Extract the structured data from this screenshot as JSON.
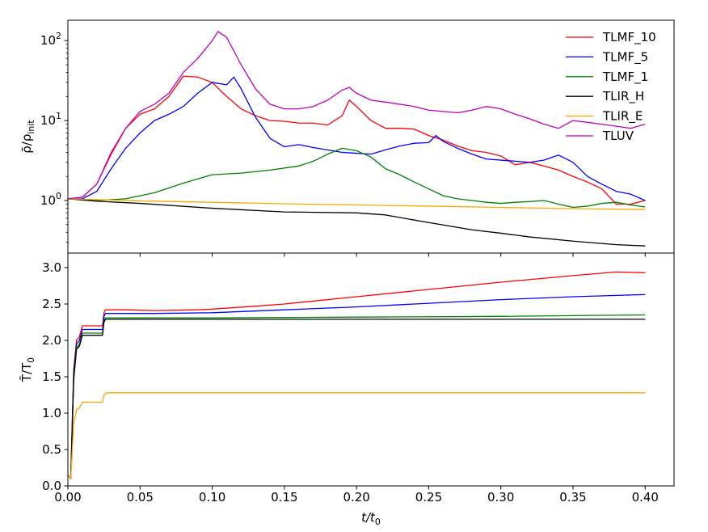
{
  "chart_data": {
    "type": "line",
    "shared_x_axis": {
      "xlim": [
        0.0,
        0.42
      ],
      "ticks": [
        0.0,
        0.05,
        0.1,
        0.15,
        0.2,
        0.25,
        0.3,
        0.35,
        0.4
      ],
      "tick_labels": [
        "0.00",
        "0.05",
        "0.10",
        "0.15",
        "0.20",
        "0.25",
        "0.30",
        "0.35",
        "0.40"
      ],
      "xlabel_main": "t/t",
      "xlabel_sub": "0"
    },
    "legend": {
      "placement": "top-right"
    },
    "series_styles": [
      {
        "name": "TLMF_10",
        "color": "#ff0000"
      },
      {
        "name": "TLMF_5",
        "color": "#0000ff"
      },
      {
        "name": "TLMF_1",
        "color": "#008000"
      },
      {
        "name": "TLIR_H",
        "color": "#000000"
      },
      {
        "name": "TLIR_E",
        "color": "#ffa500"
      },
      {
        "name": "TLUV",
        "color": "#bf00bf"
      }
    ],
    "panels": [
      {
        "scale": "log",
        "ylim": [
          0.22,
          180
        ],
        "yticks": [
          1,
          10,
          100
        ],
        "ytick_base": "10",
        "ytick_exponents": [
          "0",
          "1",
          "2"
        ],
        "ylabel_main": "ρ̄/ρ",
        "ylabel_sub": "init",
        "series": [
          {
            "name": "TLMF_10",
            "x": [
              0,
              0.01,
              0.02,
              0.03,
              0.04,
              0.05,
              0.06,
              0.07,
              0.08,
              0.09,
              0.1,
              0.11,
              0.12,
              0.13,
              0.14,
              0.15,
              0.16,
              0.17,
              0.18,
              0.19,
              0.195,
              0.2,
              0.21,
              0.22,
              0.23,
              0.24,
              0.25,
              0.26,
              0.27,
              0.28,
              0.29,
              0.3,
              0.31,
              0.32,
              0.33,
              0.34,
              0.35,
              0.36,
              0.37,
              0.38,
              0.39,
              0.4
            ],
            "y": [
              1.05,
              1.1,
              1.6,
              3.8,
              8.0,
              12.0,
              14.0,
              20.0,
              36.0,
              35.0,
              30.0,
              20.0,
              14.0,
              11.5,
              10.0,
              9.8,
              9.3,
              9.3,
              8.8,
              11.5,
              18.0,
              15.0,
              10.0,
              8.0,
              8.0,
              7.8,
              6.5,
              5.7,
              4.8,
              4.2,
              4.0,
              3.6,
              2.8,
              3.0,
              2.7,
              2.4,
              2.0,
              1.7,
              1.4,
              0.9,
              0.9,
              1.0
            ]
          },
          {
            "name": "TLMF_5",
            "x": [
              0,
              0.01,
              0.02,
              0.03,
              0.04,
              0.05,
              0.06,
              0.07,
              0.08,
              0.09,
              0.1,
              0.11,
              0.115,
              0.12,
              0.13,
              0.14,
              0.15,
              0.16,
              0.17,
              0.18,
              0.19,
              0.2,
              0.21,
              0.22,
              0.23,
              0.24,
              0.25,
              0.255,
              0.26,
              0.27,
              0.28,
              0.29,
              0.3,
              0.31,
              0.32,
              0.33,
              0.34,
              0.35,
              0.36,
              0.37,
              0.38,
              0.39,
              0.4
            ],
            "y": [
              1.05,
              1.05,
              1.3,
              2.5,
              4.5,
              7.0,
              10.0,
              12.0,
              15.0,
              22.0,
              30.0,
              28.0,
              35.0,
              25.0,
              11.0,
              6.0,
              4.7,
              5.0,
              4.6,
              4.3,
              4.0,
              3.9,
              3.8,
              4.3,
              4.8,
              5.2,
              5.3,
              6.5,
              5.5,
              4.5,
              3.8,
              3.3,
              3.2,
              3.1,
              3.0,
              3.2,
              3.7,
              3.0,
              2.0,
              1.6,
              1.3,
              1.2,
              1.0
            ]
          },
          {
            "name": "TLMF_1",
            "x": [
              0,
              0.02,
              0.04,
              0.06,
              0.08,
              0.1,
              0.12,
              0.14,
              0.16,
              0.17,
              0.18,
              0.19,
              0.2,
              0.21,
              0.22,
              0.23,
              0.24,
              0.25,
              0.26,
              0.27,
              0.28,
              0.29,
              0.3,
              0.31,
              0.32,
              0.33,
              0.34,
              0.35,
              0.36,
              0.37,
              0.38,
              0.39,
              0.4
            ],
            "y": [
              1.05,
              1.0,
              1.05,
              1.25,
              1.65,
              2.1,
              2.2,
              2.4,
              2.7,
              3.1,
              3.8,
              4.5,
              4.2,
              3.5,
              2.5,
              2.1,
              1.7,
              1.4,
              1.15,
              1.05,
              1.0,
              0.95,
              0.92,
              0.95,
              0.97,
              1.0,
              0.9,
              0.82,
              0.85,
              0.92,
              0.95,
              0.88,
              0.83
            ]
          },
          {
            "name": "TLIR_H",
            "x": [
              0,
              0.02,
              0.05,
              0.1,
              0.15,
              0.2,
              0.22,
              0.25,
              0.28,
              0.3,
              0.32,
              0.35,
              0.38,
              0.4
            ],
            "y": [
              1.05,
              0.98,
              0.92,
              0.8,
              0.72,
              0.7,
              0.66,
              0.53,
              0.43,
              0.39,
              0.35,
              0.31,
              0.28,
              0.27
            ]
          },
          {
            "name": "TLIR_E",
            "x": [
              0,
              0.05,
              0.1,
              0.15,
              0.2,
              0.25,
              0.3,
              0.35,
              0.4
            ],
            "y": [
              1.05,
              0.99,
              0.95,
              0.91,
              0.88,
              0.85,
              0.82,
              0.79,
              0.77
            ]
          },
          {
            "name": "TLUV",
            "x": [
              0,
              0.01,
              0.02,
              0.03,
              0.04,
              0.05,
              0.06,
              0.07,
              0.08,
              0.09,
              0.1,
              0.104,
              0.11,
              0.12,
              0.13,
              0.14,
              0.15,
              0.16,
              0.17,
              0.18,
              0.19,
              0.195,
              0.2,
              0.21,
              0.22,
              0.23,
              0.24,
              0.25,
              0.26,
              0.27,
              0.28,
              0.29,
              0.3,
              0.31,
              0.32,
              0.33,
              0.34,
              0.35,
              0.36,
              0.37,
              0.38,
              0.39,
              0.4
            ],
            "y": [
              1.05,
              1.1,
              1.6,
              4.0,
              8.0,
              13.0,
              16.0,
              22.0,
              40.0,
              60.0,
              100.0,
              130.0,
              110.0,
              50.0,
              25.0,
              16.0,
              14.0,
              14.0,
              15.0,
              18.0,
              24.0,
              26.0,
              22.0,
              18.0,
              17.0,
              16.0,
              15.0,
              13.5,
              13.0,
              12.5,
              13.5,
              15.0,
              14.0,
              12.0,
              10.5,
              9.0,
              8.0,
              10.0,
              9.5,
              9.0,
              8.5,
              8.0,
              9.0
            ]
          }
        ]
      },
      {
        "scale": "linear",
        "ylim": [
          0.0,
          3.2
        ],
        "yticks": [
          0.0,
          0.5,
          1.0,
          1.5,
          2.0,
          2.5,
          3.0
        ],
        "ytick_labels": [
          "0.0",
          "0.5",
          "1.0",
          "1.5",
          "2.0",
          "2.5",
          "3.0"
        ],
        "ylabel_main": "T̄/T",
        "ylabel_sub": "0",
        "series": [
          {
            "name": "TLMF_10",
            "x": [
              0,
              0.002,
              0.004,
              0.006,
              0.008,
              0.01,
              0.024,
              0.025,
              0.026,
              0.04,
              0.06,
              0.09,
              0.1,
              0.13,
              0.15,
              0.2,
              0.25,
              0.3,
              0.35,
              0.38,
              0.4
            ],
            "y": [
              0.15,
              0.1,
              1.6,
              2.0,
              2.05,
              2.2,
              2.2,
              2.38,
              2.42,
              2.42,
              2.41,
              2.42,
              2.43,
              2.47,
              2.5,
              2.6,
              2.7,
              2.8,
              2.89,
              2.94,
              2.93
            ]
          },
          {
            "name": "TLMF_5",
            "x": [
              0,
              0.002,
              0.004,
              0.006,
              0.008,
              0.01,
              0.024,
              0.025,
              0.026,
              0.06,
              0.1,
              0.15,
              0.2,
              0.25,
              0.3,
              0.35,
              0.4
            ],
            "y": [
              0.15,
              0.1,
              1.55,
              1.95,
              2.0,
              2.15,
              2.15,
              2.33,
              2.37,
              2.37,
              2.38,
              2.42,
              2.46,
              2.51,
              2.56,
              2.6,
              2.63
            ]
          },
          {
            "name": "TLMF_1",
            "x": [
              0,
              0.002,
              0.004,
              0.006,
              0.008,
              0.01,
              0.024,
              0.025,
              0.026,
              0.1,
              0.2,
              0.3,
              0.4
            ],
            "y": [
              0.15,
              0.1,
              1.5,
              1.9,
              1.95,
              2.1,
              2.1,
              2.27,
              2.31,
              2.31,
              2.32,
              2.33,
              2.35
            ]
          },
          {
            "name": "TLIR_H",
            "x": [
              0,
              0.002,
              0.004,
              0.006,
              0.008,
              0.01,
              0.024,
              0.025,
              0.026,
              0.1,
              0.2,
              0.3,
              0.4
            ],
            "y": [
              0.15,
              0.1,
              1.45,
              1.88,
              1.92,
              2.07,
              2.07,
              2.25,
              2.29,
              2.29,
              2.29,
              2.29,
              2.29
            ]
          },
          {
            "name": "TLIR_E",
            "x": [
              0,
              0.002,
              0.004,
              0.006,
              0.008,
              0.01,
              0.024,
              0.025,
              0.027,
              0.05,
              0.1,
              0.2,
              0.3,
              0.4
            ],
            "y": [
              0.15,
              0.1,
              0.85,
              1.05,
              1.07,
              1.15,
              1.15,
              1.25,
              1.28,
              1.28,
              1.28,
              1.28,
              1.28,
              1.28
            ]
          }
        ]
      }
    ]
  }
}
